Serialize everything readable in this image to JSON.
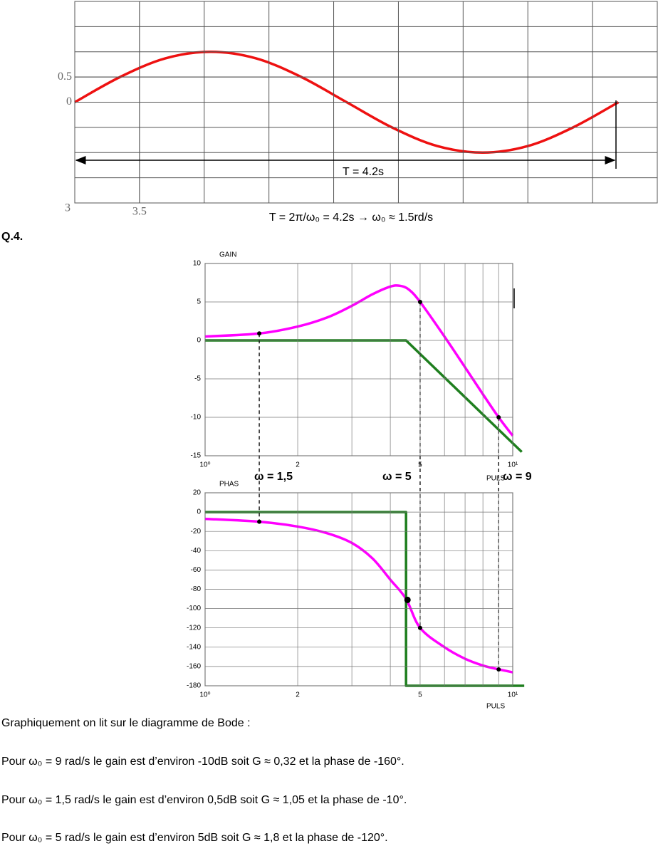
{
  "chart_data": [
    {
      "type": "line",
      "x": [
        3,
        3.35,
        3.7,
        4.05,
        4.4,
        4.75,
        5.1,
        5.45,
        5.8,
        6.15,
        6.5,
        6.85,
        7.2
      ],
      "series": [
        {
          "color": "#ee1111",
          "values": [
            0,
            0.5,
            0.87,
            1,
            0.87,
            0.5,
            0,
            -0.5,
            -0.87,
            -1,
            -0.87,
            -0.5,
            0
          ]
        }
      ],
      "xlim": [
        3,
        7.5
      ],
      "xticks": [
        3,
        3.5
      ],
      "ylim": [
        -2,
        2
      ],
      "yticks": [
        0,
        0.5
      ],
      "grid": true,
      "annotations": [
        "T = 4.2s"
      ]
    },
    {
      "type": "line",
      "ylabel": "GAIN",
      "xlabel": "PULS",
      "log_x": true,
      "xlim": [
        1,
        10
      ],
      "xticks": [
        {
          "value": 1,
          "label": "10⁰"
        },
        2,
        5,
        {
          "value": 10,
          "label": "10¹"
        }
      ],
      "minor_xticks": [
        3,
        4,
        6,
        7,
        8,
        9
      ],
      "ylim": [
        -15,
        10
      ],
      "yticks": [
        -15,
        -10,
        -5,
        0,
        5,
        10
      ],
      "grid": true,
      "series": [
        {
          "color": "#ff00ff",
          "x": [
            1,
            1.5,
            2,
            2.5,
            3,
            3.5,
            4,
            4.3,
            4.6,
            5,
            6,
            7,
            8,
            9,
            10
          ],
          "values": [
            0.5,
            0.9,
            1.8,
            3,
            4.5,
            6,
            7,
            7.1,
            6.6,
            5,
            0.5,
            -3.5,
            -7,
            -10,
            -12.4
          ]
        },
        {
          "color": "#1f7f1f",
          "x": [
            1,
            4.5,
            10.7
          ],
          "values": [
            0,
            0,
            -14.5
          ]
        }
      ],
      "markers": [
        {
          "x": 1.5,
          "y": 0.9
        },
        {
          "x": 5,
          "y": 5
        },
        {
          "x": 9,
          "y": -10
        }
      ]
    },
    {
      "type": "line",
      "ylabel": "PHAS",
      "xlabel": "PULS",
      "log_x": true,
      "xlim": [
        1,
        10
      ],
      "xticks": [
        {
          "value": 1,
          "label": "10⁰"
        },
        2,
        5,
        {
          "value": 10,
          "label": "10¹"
        }
      ],
      "minor_xticks": [
        3,
        4,
        6,
        7,
        8,
        9
      ],
      "ylim": [
        -180,
        20
      ],
      "yticks": [
        -180,
        -160,
        -140,
        -120,
        -100,
        -80,
        -60,
        -40,
        -20,
        0,
        20
      ],
      "grid": true,
      "series": [
        {
          "color": "#ff00ff",
          "x": [
            1,
            1.5,
            2,
            2.5,
            3,
            3.5,
            4,
            4.5,
            5,
            6,
            7,
            8,
            9,
            10
          ],
          "values": [
            -7,
            -10,
            -15,
            -22,
            -32,
            -48,
            -70,
            -90,
            -120,
            -140,
            -152,
            -159,
            -163,
            -166
          ]
        },
        {
          "color": "#1f7f1f",
          "x": [
            1,
            4.5,
            4.5,
            10.9
          ],
          "values": [
            0,
            0,
            -180,
            -180
          ]
        }
      ],
      "markers": [
        {
          "x": 1.5,
          "y": -10
        },
        {
          "x": 5,
          "y": -120
        },
        {
          "x": 9,
          "y": -163
        },
        {
          "x": 4.55,
          "y": -91
        }
      ]
    }
  ],
  "caption": "T = 2π/ω₀ = 4.2s → ω₀ ≈ 1.5rd/s",
  "question": "Q.4.",
  "omega_labels": [
    "ω = 1,5",
    "ω = 5",
    "ω = 9"
  ],
  "reading": {
    "intro": "Graphiquement on lit sur le diagramme de Bode :",
    "lines": [
      "Pour ω₀ = 9 rad/s le gain est d’environ -10dB soit G ≈ 0,32 et la phase de -160°.",
      "Pour ω₀ = 1,5 rad/s le gain est d’environ 0,5dB soit G ≈ 1,05 et la phase de -10°.",
      "Pour ω₀ = 5 rad/s le gain est d’environ 5dB soit G ≈ 1,8 et la phase de -120°."
    ]
  }
}
